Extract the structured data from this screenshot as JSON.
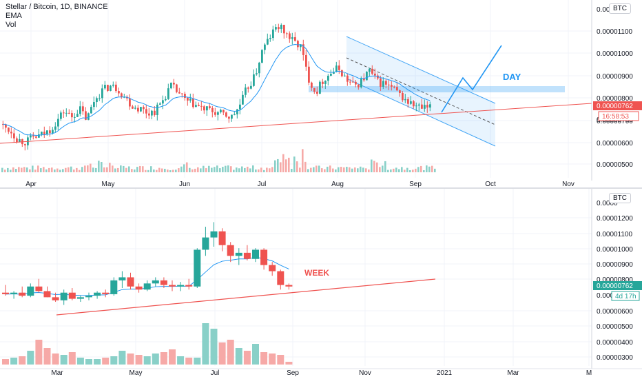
{
  "chart_data": [
    {
      "type": "candlestick",
      "timeframe": "1D",
      "legend": [
        "Stellar / Bitcoin, 1D, BINANCE",
        "EMA",
        "Vol"
      ],
      "currency": "BTC",
      "x_ticks": [
        "Apr",
        "May",
        "Jun",
        "Jul",
        "Aug",
        "Sep",
        "Oct",
        "Nov"
      ],
      "y_ticks": [
        "0.00001100",
        "0.00001000",
        "0.00000900",
        "0.00000800",
        "0.00000700",
        "0.00000600",
        "0.00000500"
      ],
      "y_top_clipped": "0.0000",
      "last_price": "0.00000762",
      "countdown": "16:58:53",
      "behind_countdown": "0.00000700",
      "annotation": "DAY",
      "ylim": [
        4.5e-06,
        1.22e-05
      ],
      "close_path": [
        6.8e-06,
        6.6e-06,
        6.2e-06,
        6.1e-06,
        6.3e-06,
        6.4e-06,
        6.6e-06,
        7e-06,
        7.5e-06,
        7.2e-06,
        7.6e-06,
        7.1e-06,
        8e-06,
        8.4e-06,
        8.6e-06,
        8.5e-06,
        8.1e-06,
        7.7e-06,
        7.6e-06,
        7.4e-06,
        7.5e-06,
        8e-06,
        8.6e-06,
        8.3e-06,
        7.9e-06,
        7.8e-06,
        7.6e-06,
        7.5e-06,
        7.4e-06,
        7.3e-06,
        7.2e-06,
        7.7e-06,
        8.5e-06,
        9e-06,
        1.02e-05,
        1.08e-05,
        1.13e-05,
        1.1e-05,
        1.06e-05,
        1.04e-05,
        9e-06,
        8.3e-06,
        8.9e-06,
        9.2e-06,
        9.4e-06,
        8.9e-06,
        8.6e-06,
        8.8e-06,
        9.3e-06,
        8.8e-06,
        8.7e-06,
        8.5e-06,
        8.2e-06,
        7.9e-06,
        7.7e-06,
        7.6e-06,
        7.6e-06
      ]
    },
    {
      "type": "candlestick",
      "timeframe": "1W",
      "currency": "BTC",
      "x_ticks": [
        "Mar",
        "May",
        "Jul",
        "Sep",
        "Nov",
        "2021",
        "Mar",
        "M"
      ],
      "y_ticks": [
        "0.00001200",
        "0.00001100",
        "0.00001000",
        "0.00000900",
        "0.00000800",
        "0.00000600",
        "0.00000500",
        "0.00000400",
        "0.00000300"
      ],
      "y_top_clipped": "0.0000",
      "last_price": "0.00000762",
      "countdown": "4d 17h",
      "behind_countdown": "0.00000700",
      "annotation": "WEEK",
      "ylim": [
        2.6e-06,
        1.33e-05
      ],
      "candles": [
        {
          "o": 7.2e-06,
          "h": 7.7e-06,
          "l": 7e-06,
          "c": 7.1e-06
        },
        {
          "o": 7.1e-06,
          "h": 7.3e-06,
          "l": 6.8e-06,
          "c": 7.2e-06
        },
        {
          "o": 7.2e-06,
          "h": 7.6e-06,
          "l": 6.9e-06,
          "c": 7e-06
        },
        {
          "o": 7e-06,
          "h": 7.8e-06,
          "l": 6.9e-06,
          "c": 7.6e-06
        },
        {
          "o": 7.6e-06,
          "h": 8.1e-06,
          "l": 7.2e-06,
          "c": 7.3e-06
        },
        {
          "o": 7.3e-06,
          "h": 7.6e-06,
          "l": 6.9e-06,
          "c": 6.9e-06
        },
        {
          "o": 6.9e-06,
          "h": 7.2e-06,
          "l": 6.6e-06,
          "c": 6.7e-06
        },
        {
          "o": 6.7e-06,
          "h": 7.4e-06,
          "l": 6.4e-06,
          "c": 7.2e-06
        },
        {
          "o": 7.2e-06,
          "h": 7.5e-06,
          "l": 6.7e-06,
          "c": 6.8e-06
        },
        {
          "o": 6.8e-06,
          "h": 7e-06,
          "l": 6.6e-06,
          "c": 6.9e-06
        },
        {
          "o": 6.9e-06,
          "h": 7.2e-06,
          "l": 6.7e-06,
          "c": 7e-06
        },
        {
          "o": 7e-06,
          "h": 7.3e-06,
          "l": 6.8e-06,
          "c": 7.2e-06
        },
        {
          "o": 7.2e-06,
          "h": 7.4e-06,
          "l": 6.9e-06,
          "c": 7.1e-06
        },
        {
          "o": 7.1e-06,
          "h": 8.2e-06,
          "l": 7e-06,
          "c": 8e-06
        },
        {
          "o": 8e-06,
          "h": 8.6e-06,
          "l": 7.5e-06,
          "c": 8.2e-06
        },
        {
          "o": 8.2e-06,
          "h": 8.5e-06,
          "l": 7.4e-06,
          "c": 7.6e-06
        },
        {
          "o": 7.6e-06,
          "h": 7.8e-06,
          "l": 7.2e-06,
          "c": 7.4e-06
        },
        {
          "o": 7.4e-06,
          "h": 8e-06,
          "l": 7.3e-06,
          "c": 7.8e-06
        },
        {
          "o": 7.8e-06,
          "h": 8.2e-06,
          "l": 7.6e-06,
          "c": 8e-06
        },
        {
          "o": 8e-06,
          "h": 8.2e-06,
          "l": 7.5e-06,
          "c": 7.7e-06
        },
        {
          "o": 7.7e-06,
          "h": 8e-06,
          "l": 7.3e-06,
          "c": 7.6e-06
        },
        {
          "o": 7.6e-06,
          "h": 7.9e-06,
          "l": 7.3e-06,
          "c": 7.7e-06
        },
        {
          "o": 7.7e-06,
          "h": 8.1e-06,
          "l": 7.4e-06,
          "c": 7.6e-06
        },
        {
          "o": 7.6e-06,
          "h": 1.01e-05,
          "l": 7.5e-06,
          "c": 1e-05
        },
        {
          "o": 1e-05,
          "h": 1.15e-05,
          "l": 9.6e-06,
          "c": 1.08e-05
        },
        {
          "o": 1.08e-05,
          "h": 1.18e-05,
          "l": 1.02e-05,
          "c": 1.12e-05
        },
        {
          "o": 1.12e-05,
          "h": 1.14e-05,
          "l": 9.9e-06,
          "c": 1.03e-05
        },
        {
          "o": 1.03e-05,
          "h": 1.05e-05,
          "l": 9.2e-06,
          "c": 9.6e-06
        },
        {
          "o": 9.6e-06,
          "h": 1.01e-05,
          "l": 9e-06,
          "c": 9.8e-06
        },
        {
          "o": 9.8e-06,
          "h": 1.03e-05,
          "l": 9.3e-06,
          "c": 9.4e-06
        },
        {
          "o": 9.4e-06,
          "h": 1.01e-05,
          "l": 9.2e-06,
          "c": 1e-05
        },
        {
          "o": 1e-05,
          "h": 1.01e-05,
          "l": 8.7e-06,
          "c": 9e-06
        },
        {
          "o": 9e-06,
          "h": 9.2e-06,
          "l": 8.3e-06,
          "c": 8.6e-06
        },
        {
          "o": 8.6e-06,
          "h": 8.7e-06,
          "l": 7.4e-06,
          "c": 7.7e-06
        },
        {
          "o": 7.7e-06,
          "h": 7.8e-06,
          "l": 7.4e-06,
          "c": 7.6e-06
        }
      ]
    }
  ]
}
